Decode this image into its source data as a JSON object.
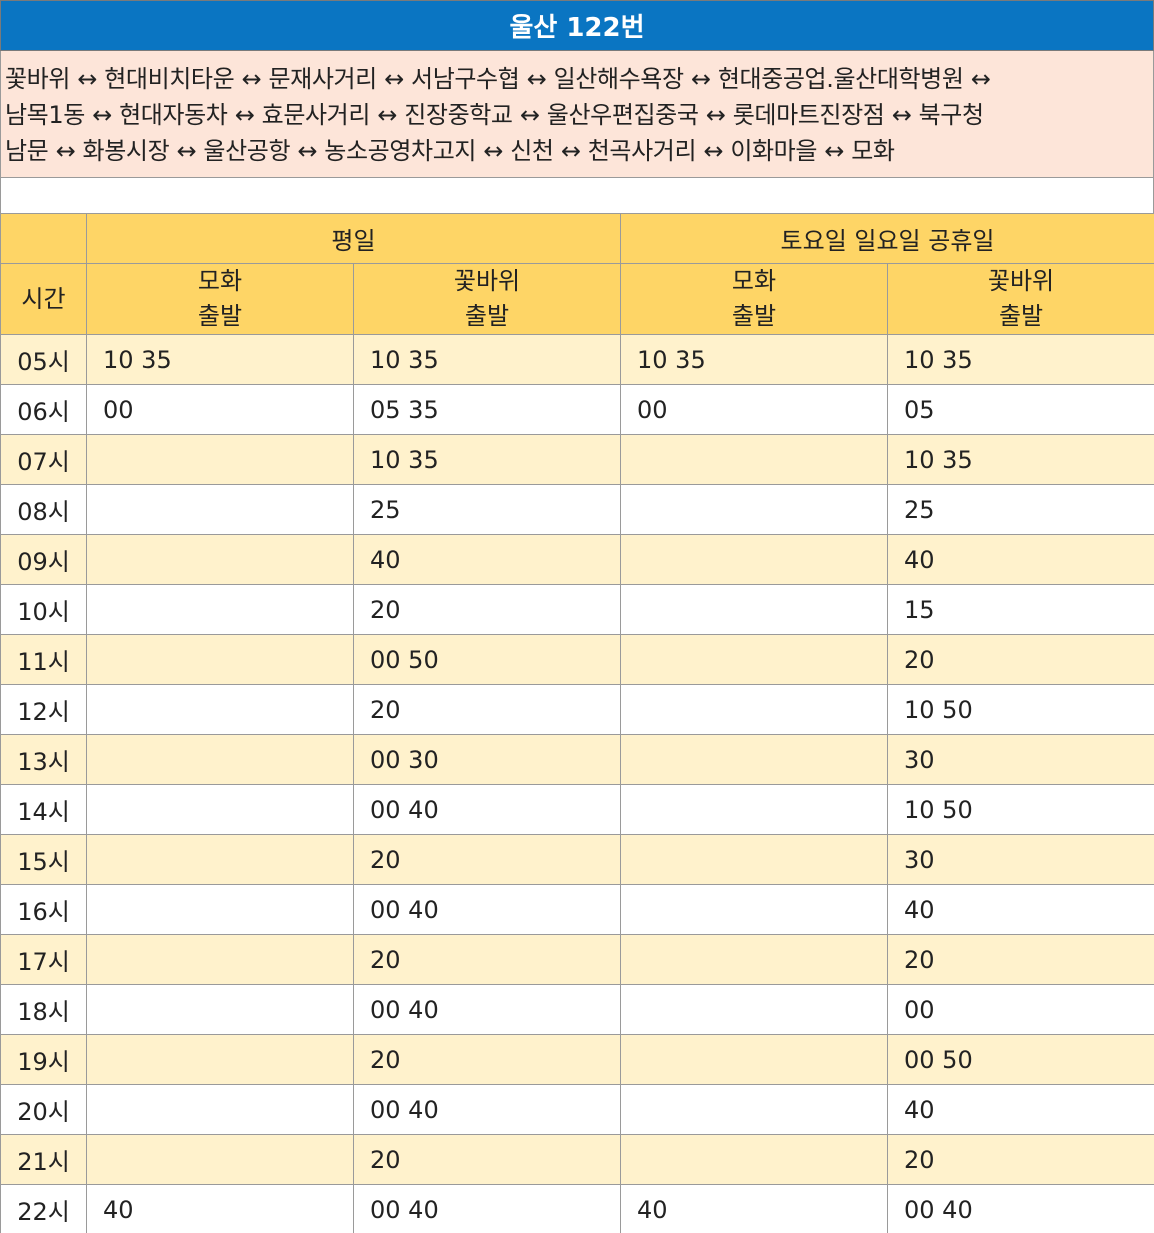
{
  "title": "울산 122번",
  "route": "꽃바위 ↔ 현대비치타운 ↔ 문재사거리 ↔ 서남구수협 ↔ 일산해수욕장 ↔ 현대중공업.울산대학병원 ↔\n남목1동 ↔ 현대자동차 ↔ 효문사거리 ↔ 진장중학교 ↔ 울산우편집중국 ↔ 롯데마트진장점 ↔ 북구청\n남문 ↔ 화봉시장 ↔ 울산공항 ↔ 농소공영차고지 ↔ 신천 ↔ 천곡사거리 ↔ 이화마을 ↔ 모화",
  "colors": {
    "title_bg": "#0a75c2",
    "route_bg": "#fde5d9",
    "header_bg": "#fed566",
    "stripe_bg": "#fff2cc"
  },
  "table": {
    "weekday_label": "평일",
    "weekend_label": "토요일 일요일 공휴일",
    "time_label": "시간",
    "sub": {
      "weekday_mohwa": "모화\n출발",
      "weekday_kkot": "꽃바위\n출발",
      "weekend_mohwa": "모화\n출발",
      "weekend_kkot": "꽃바위\n출발"
    },
    "rows": [
      {
        "hour": "05시",
        "wd_mohwa": "10 35",
        "wd_kkot": "10 35",
        "we_mohwa": "10 35",
        "we_kkot": "10 35"
      },
      {
        "hour": "06시",
        "wd_mohwa": "00",
        "wd_kkot": "05 35",
        "we_mohwa": "00",
        "we_kkot": "05"
      },
      {
        "hour": "07시",
        "wd_mohwa": "",
        "wd_kkot": "10 35",
        "we_mohwa": "",
        "we_kkot": "10 35"
      },
      {
        "hour": "08시",
        "wd_mohwa": "",
        "wd_kkot": "25",
        "we_mohwa": "",
        "we_kkot": "25"
      },
      {
        "hour": "09시",
        "wd_mohwa": "",
        "wd_kkot": "40",
        "we_mohwa": "",
        "we_kkot": "40"
      },
      {
        "hour": "10시",
        "wd_mohwa": "",
        "wd_kkot": "20",
        "we_mohwa": "",
        "we_kkot": "15"
      },
      {
        "hour": "11시",
        "wd_mohwa": "",
        "wd_kkot": "00 50",
        "we_mohwa": "",
        "we_kkot": "20"
      },
      {
        "hour": "12시",
        "wd_mohwa": "",
        "wd_kkot": "20",
        "we_mohwa": "",
        "we_kkot": "10 50"
      },
      {
        "hour": "13시",
        "wd_mohwa": "",
        "wd_kkot": "00 30",
        "we_mohwa": "",
        "we_kkot": "30"
      },
      {
        "hour": "14시",
        "wd_mohwa": "",
        "wd_kkot": "00 40",
        "we_mohwa": "",
        "we_kkot": "10 50"
      },
      {
        "hour": "15시",
        "wd_mohwa": "",
        "wd_kkot": "20",
        "we_mohwa": "",
        "we_kkot": "30"
      },
      {
        "hour": "16시",
        "wd_mohwa": "",
        "wd_kkot": "00 40",
        "we_mohwa": "",
        "we_kkot": "40"
      },
      {
        "hour": "17시",
        "wd_mohwa": "",
        "wd_kkot": "20",
        "we_mohwa": "",
        "we_kkot": "20"
      },
      {
        "hour": "18시",
        "wd_mohwa": "",
        "wd_kkot": "00 40",
        "we_mohwa": "",
        "we_kkot": "00"
      },
      {
        "hour": "19시",
        "wd_mohwa": "",
        "wd_kkot": "20",
        "we_mohwa": "",
        "we_kkot": "00 50"
      },
      {
        "hour": "20시",
        "wd_mohwa": "",
        "wd_kkot": "00 40",
        "we_mohwa": "",
        "we_kkot": "40"
      },
      {
        "hour": "21시",
        "wd_mohwa": "",
        "wd_kkot": "20",
        "we_mohwa": "",
        "we_kkot": "20"
      },
      {
        "hour": "22시",
        "wd_mohwa": "40",
        "wd_kkot": "00 40",
        "we_mohwa": "40",
        "we_kkot": "00 40"
      }
    ]
  }
}
